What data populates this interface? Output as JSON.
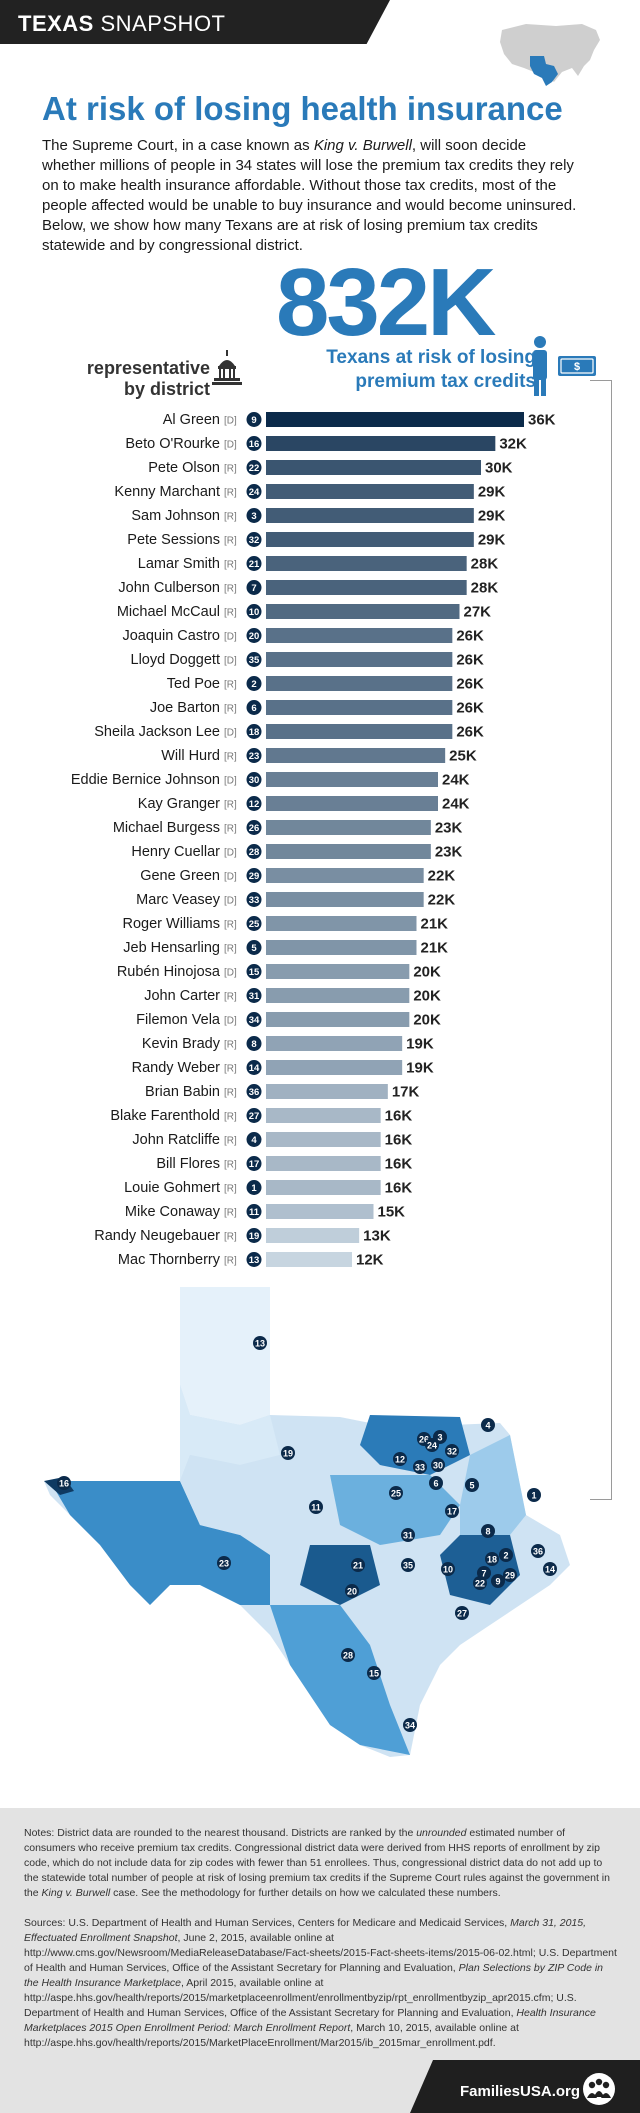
{
  "header": {
    "tag_bold": "TEXAS",
    "tag_rest": " SNAPSHOT"
  },
  "title": "At risk of losing health insurance",
  "intro": {
    "p1": "The Supreme Court, in a case known as ",
    "case": "King v. Burwell",
    "p2": ", will soon decide whether millions of people in 34 states will lose the premium tax credits they rely on to make health insurance affordable. Without those tax credits, most of the people affected would be unable to buy insurance and would become uninsured. Below, we show how many Texans are at risk of losing premium tax credits statewide and by congressional district."
  },
  "headline": {
    "number": "832K",
    "caption_l1": "Texans at risk of losing",
    "caption_l2": "premium tax credits"
  },
  "rep_header": {
    "l1": "representative",
    "l2": "by district"
  },
  "colors": {
    "accent": "#2a7ab9",
    "darkest": "#0b2a4a",
    "lightest": "#e8f3fb"
  },
  "icons": {
    "capitol": "capitol-icon",
    "person": "person-icon",
    "money": "money-icon",
    "us_map": "us-map-icon",
    "brand": "people-circle-icon"
  },
  "chart_data": {
    "type": "bar",
    "orientation": "horizontal",
    "unit": "K",
    "xlim": [
      0,
      36
    ],
    "rows": [
      {
        "name": "Al Green",
        "party": "D",
        "district": 9,
        "value": 36
      },
      {
        "name": "Beto O'Rourke",
        "party": "D",
        "district": 16,
        "value": 32
      },
      {
        "name": "Pete Olson",
        "party": "R",
        "district": 22,
        "value": 30
      },
      {
        "name": "Kenny Marchant",
        "party": "R",
        "district": 24,
        "value": 29
      },
      {
        "name": "Sam Johnson",
        "party": "R",
        "district": 3,
        "value": 29
      },
      {
        "name": "Pete Sessions",
        "party": "R",
        "district": 32,
        "value": 29
      },
      {
        "name": "Lamar Smith",
        "party": "R",
        "district": 21,
        "value": 28
      },
      {
        "name": "John Culberson",
        "party": "R",
        "district": 7,
        "value": 28
      },
      {
        "name": "Michael McCaul",
        "party": "R",
        "district": 10,
        "value": 27
      },
      {
        "name": "Joaquin Castro",
        "party": "D",
        "district": 20,
        "value": 26
      },
      {
        "name": "Lloyd Doggett",
        "party": "D",
        "district": 35,
        "value": 26
      },
      {
        "name": "Ted Poe",
        "party": "R",
        "district": 2,
        "value": 26
      },
      {
        "name": "Joe Barton",
        "party": "R",
        "district": 6,
        "value": 26
      },
      {
        "name": "Sheila Jackson Lee",
        "party": "D",
        "district": 18,
        "value": 26
      },
      {
        "name": "Will Hurd",
        "party": "R",
        "district": 23,
        "value": 25
      },
      {
        "name": "Eddie Bernice Johnson",
        "party": "D",
        "district": 30,
        "value": 24
      },
      {
        "name": "Kay Granger",
        "party": "R",
        "district": 12,
        "value": 24
      },
      {
        "name": "Michael Burgess",
        "party": "R",
        "district": 26,
        "value": 23
      },
      {
        "name": "Henry Cuellar",
        "party": "D",
        "district": 28,
        "value": 23
      },
      {
        "name": "Gene Green",
        "party": "D",
        "district": 29,
        "value": 22
      },
      {
        "name": "Marc Veasey",
        "party": "D",
        "district": 33,
        "value": 22
      },
      {
        "name": "Roger Williams",
        "party": "R",
        "district": 25,
        "value": 21
      },
      {
        "name": "Jeb Hensarling",
        "party": "R",
        "district": 5,
        "value": 21
      },
      {
        "name": "Rubén Hinojosa",
        "party": "D",
        "district": 15,
        "value": 20
      },
      {
        "name": "John Carter",
        "party": "R",
        "district": 31,
        "value": 20
      },
      {
        "name": "Filemon Vela",
        "party": "D",
        "district": 34,
        "value": 20
      },
      {
        "name": "Kevin Brady",
        "party": "R",
        "district": 8,
        "value": 19
      },
      {
        "name": "Randy Weber",
        "party": "R",
        "district": 14,
        "value": 19
      },
      {
        "name": "Brian Babin",
        "party": "R",
        "district": 36,
        "value": 17
      },
      {
        "name": "Blake Farenthold",
        "party": "R",
        "district": 27,
        "value": 16
      },
      {
        "name": "John Ratcliffe",
        "party": "R",
        "district": 4,
        "value": 16
      },
      {
        "name": "Bill Flores",
        "party": "R",
        "district": 17,
        "value": 16
      },
      {
        "name": "Louie Gohmert",
        "party": "R",
        "district": 1,
        "value": 16
      },
      {
        "name": "Mike Conaway",
        "party": "R",
        "district": 11,
        "value": 15
      },
      {
        "name": "Randy Neugebauer",
        "party": "R",
        "district": 19,
        "value": 13
      },
      {
        "name": "Mac Thornberry",
        "party": "R",
        "district": 13,
        "value": 12
      }
    ]
  },
  "map_labels": [
    "13",
    "19",
    "16",
    "11",
    "23",
    "4",
    "26",
    "24",
    "3",
    "32",
    "12",
    "33",
    "30",
    "6",
    "5",
    "25",
    "1",
    "17",
    "8",
    "31",
    "36",
    "21",
    "35",
    "10",
    "18",
    "2",
    "7",
    "29",
    "22",
    "9",
    "14",
    "20",
    "27",
    "28",
    "15",
    "34"
  ],
  "notes": {
    "prefix": "Notes: ",
    "t1": "District data are rounded to the nearest thousand. Districts are ranked by the ",
    "em1": "unrounded",
    "t2": " estimated number of consumers who receive premium tax credits. Congressional district data were derived from HHS reports of enrollment by zip code, which do not include data for zip codes with fewer than 51 enrollees. Thus, congressional district data do not add up to the statewide total number of people at risk of losing premium tax credits if the Supreme Court rules against the government in the ",
    "em2": "King v. Burwell",
    "t3": " case. See the methodology for further details on how we calculated these numbers."
  },
  "sources": {
    "t1": "Sources: U.S. Department of Health and Human Services, Centers for Medicare and Medicaid Services, ",
    "em1": "March 31, 2015, Effectuated Enrollment Snapshot",
    "t2": ", June 2, 2015, available online at http://www.cms.gov/Newsroom/MediaReleaseDatabase/Fact-sheets/2015-Fact-sheets-items/2015-06-02.html; U.S. Department of Health and Human Services, Office of the Assistant Secretary for Planning and Evaluation, ",
    "em2": "Plan Selections by ZIP Code in the Health Insurance Marketplace",
    "t3": ", April 2015, available online at http://aspe.hhs.gov/health/reports/2015/marketplaceenrollment/enrollmentbyzip/rpt_enrollmentbyzip_apr2015.cfm; U.S. Department of Health and Human Services, Office of the Assistant Secretary for Planning and Evaluation, ",
    "em3": "Health Insurance Marketplaces 2015 Open Enrollment Period: March Enrollment Report",
    "t4": ", March 10, 2015, available online at http://aspe.hhs.gov/health/reports/2015/MarketPlaceEnrollment/Mar2015/ib_2015mar_enrollment.pdf."
  },
  "footer": {
    "brand": "FamiliesUSA.org"
  }
}
